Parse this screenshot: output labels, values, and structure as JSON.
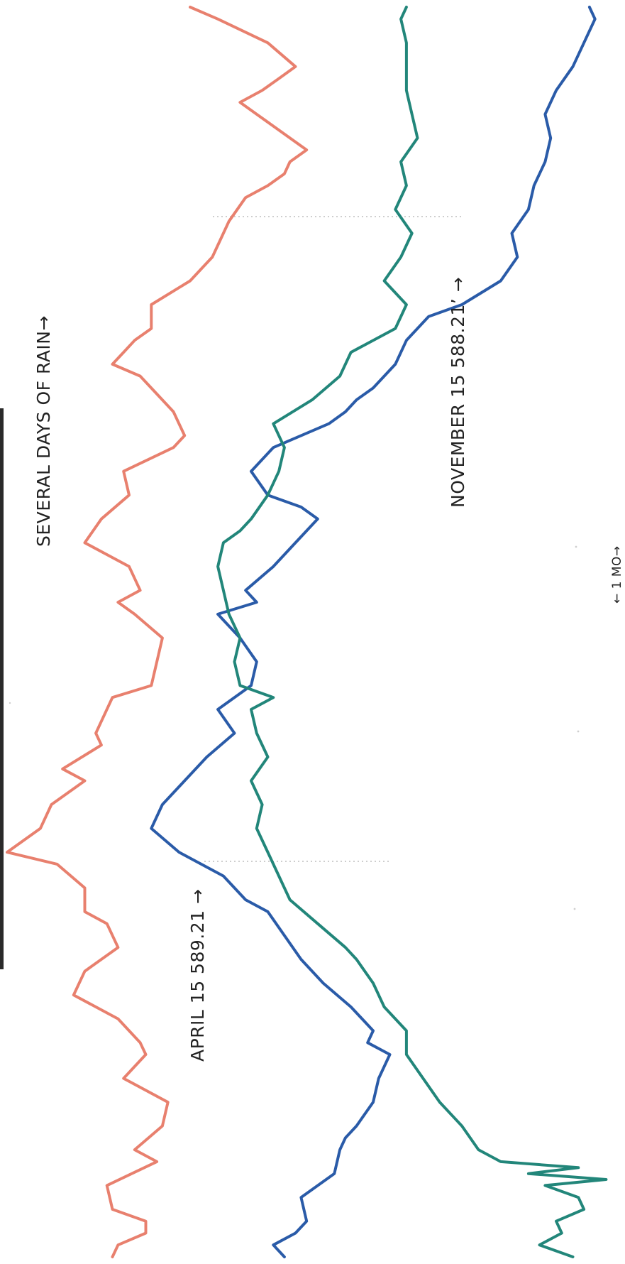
{
  "chart_data": {
    "type": "line",
    "orientation": "rotated-90",
    "grid": false,
    "legend": "none",
    "annotations": [
      {
        "id": "rain",
        "text": "SEVERAL DAYS OF RAIN→"
      },
      {
        "id": "april",
        "text": "APRIL 15  589.21  →"
      },
      {
        "id": "november",
        "text": "NOVEMBER 15   588.21’  →"
      },
      {
        "id": "scale",
        "text": "← 1 MO→"
      }
    ],
    "series": [
      {
        "color": "#e8806e",
        "points": [
          [
            0,
            19
          ],
          [
            1,
            20
          ],
          [
            2,
            25
          ],
          [
            3,
            25
          ],
          [
            4,
            19
          ],
          [
            6,
            18
          ],
          [
            8,
            27
          ],
          [
            9,
            23
          ],
          [
            11,
            28
          ],
          [
            13,
            29
          ],
          [
            15,
            21
          ],
          [
            17,
            25
          ],
          [
            18,
            24
          ],
          [
            20,
            20
          ],
          [
            22,
            12
          ],
          [
            24,
            14
          ],
          [
            26,
            20
          ],
          [
            28,
            18
          ],
          [
            29,
            14
          ],
          [
            31,
            14
          ],
          [
            33,
            9
          ],
          [
            34,
            0
          ],
          [
            36,
            6
          ],
          [
            38,
            8
          ],
          [
            40,
            14
          ],
          [
            41,
            10
          ],
          [
            43,
            17
          ],
          [
            44,
            16
          ],
          [
            45,
            17
          ],
          [
            47,
            19
          ],
          [
            48,
            26
          ],
          [
            50,
            27
          ],
          [
            52,
            28
          ],
          [
            54,
            23
          ],
          [
            55,
            20
          ],
          [
            56,
            24
          ],
          [
            58,
            22
          ],
          [
            59,
            18
          ],
          [
            60,
            14
          ],
          [
            62,
            17
          ],
          [
            64,
            22
          ],
          [
            66,
            21
          ],
          [
            68,
            30
          ],
          [
            69,
            32
          ],
          [
            71,
            30
          ],
          [
            74,
            24
          ],
          [
            75,
            19
          ],
          [
            76,
            21
          ],
          [
            77,
            23
          ],
          [
            78,
            26
          ],
          [
            80,
            26
          ],
          [
            82,
            33
          ],
          [
            83,
            35
          ],
          [
            84,
            37
          ],
          [
            86,
            39
          ],
          [
            87,
            40
          ],
          [
            89,
            43
          ],
          [
            90,
            47
          ],
          [
            91,
            50
          ],
          [
            92,
            51
          ],
          [
            93,
            54
          ],
          [
            95,
            48
          ],
          [
            96,
            45
          ],
          [
            97,
            42
          ],
          [
            98,
            46
          ],
          [
            99,
            49
          ],
          [
            100,
            52
          ],
          [
            102,
            47
          ],
          [
            104,
            38
          ],
          [
            105,
            33
          ]
        ]
      },
      {
        "color": "#2a5ba8",
        "points": [
          [
            0,
            50
          ],
          [
            1,
            48
          ],
          [
            2,
            52
          ],
          [
            3,
            54
          ],
          [
            5,
            53
          ],
          [
            7,
            59
          ],
          [
            9,
            60
          ],
          [
            10,
            61
          ],
          [
            11,
            63
          ],
          [
            13,
            66
          ],
          [
            15,
            67
          ],
          [
            17,
            69
          ],
          [
            18,
            65
          ],
          [
            19,
            66
          ],
          [
            21,
            62
          ],
          [
            23,
            57
          ],
          [
            25,
            53
          ],
          [
            27,
            50
          ],
          [
            29,
            47
          ],
          [
            30,
            43
          ],
          [
            32,
            39
          ],
          [
            34,
            31
          ],
          [
            36,
            26
          ],
          [
            38,
            28
          ],
          [
            40,
            32
          ],
          [
            42,
            36
          ],
          [
            44,
            41
          ],
          [
            46,
            38
          ],
          [
            48,
            44
          ],
          [
            50,
            45
          ],
          [
            52,
            42
          ],
          [
            54,
            38
          ],
          [
            55,
            45
          ],
          [
            56,
            43
          ],
          [
            58,
            48
          ],
          [
            60,
            52
          ],
          [
            62,
            56
          ],
          [
            63,
            53
          ],
          [
            64,
            47
          ],
          [
            66,
            44
          ],
          [
            68,
            48
          ],
          [
            70,
            58
          ],
          [
            71,
            61
          ],
          [
            72,
            63
          ],
          [
            73,
            66
          ],
          [
            75,
            70
          ],
          [
            77,
            72
          ],
          [
            79,
            76
          ],
          [
            80,
            82
          ],
          [
            82,
            89
          ],
          [
            84,
            92
          ],
          [
            86,
            91
          ],
          [
            88,
            94
          ],
          [
            90,
            95
          ],
          [
            92,
            97
          ],
          [
            94,
            98
          ],
          [
            96,
            97
          ],
          [
            98,
            99
          ],
          [
            100,
            102
          ],
          [
            102,
            104
          ],
          [
            104,
            106
          ],
          [
            105,
            105
          ]
        ]
      },
      {
        "color": "#22867a",
        "points": [
          [
            0,
            102
          ],
          [
            1,
            96
          ],
          [
            2,
            100
          ],
          [
            3,
            99
          ],
          [
            4,
            104
          ],
          [
            5,
            103
          ],
          [
            6,
            97
          ],
          [
            6.5,
            108
          ],
          [
            7,
            94
          ],
          [
            7.5,
            103
          ],
          [
            8,
            89
          ],
          [
            9,
            85
          ],
          [
            11,
            82
          ],
          [
            13,
            78
          ],
          [
            15,
            75
          ],
          [
            17,
            72
          ],
          [
            19,
            72
          ],
          [
            21,
            68
          ],
          [
            23,
            66
          ],
          [
            25,
            63
          ],
          [
            26,
            61
          ],
          [
            28,
            56
          ],
          [
            30,
            51
          ],
          [
            32,
            49
          ],
          [
            34,
            47
          ],
          [
            36,
            45
          ],
          [
            38,
            46
          ],
          [
            40,
            44
          ],
          [
            42,
            47
          ],
          [
            44,
            45
          ],
          [
            46,
            44
          ],
          [
            47,
            48
          ],
          [
            48,
            42
          ],
          [
            50,
            41
          ],
          [
            52,
            42
          ],
          [
            54,
            40
          ],
          [
            56,
            39
          ],
          [
            58,
            38
          ],
          [
            60,
            39
          ],
          [
            61,
            42
          ],
          [
            62,
            44
          ],
          [
            64,
            47
          ],
          [
            66,
            49
          ],
          [
            68,
            50
          ],
          [
            70,
            48
          ],
          [
            72,
            55
          ],
          [
            74,
            60
          ],
          [
            76,
            62
          ],
          [
            78,
            70
          ],
          [
            80,
            72
          ],
          [
            82,
            68
          ],
          [
            84,
            71
          ],
          [
            86,
            73
          ],
          [
            88,
            70
          ],
          [
            90,
            72
          ],
          [
            92,
            71
          ],
          [
            94,
            74
          ],
          [
            96,
            73
          ],
          [
            98,
            72
          ],
          [
            100,
            72
          ],
          [
            102,
            72
          ],
          [
            104,
            71
          ],
          [
            105,
            72
          ]
        ]
      }
    ]
  }
}
